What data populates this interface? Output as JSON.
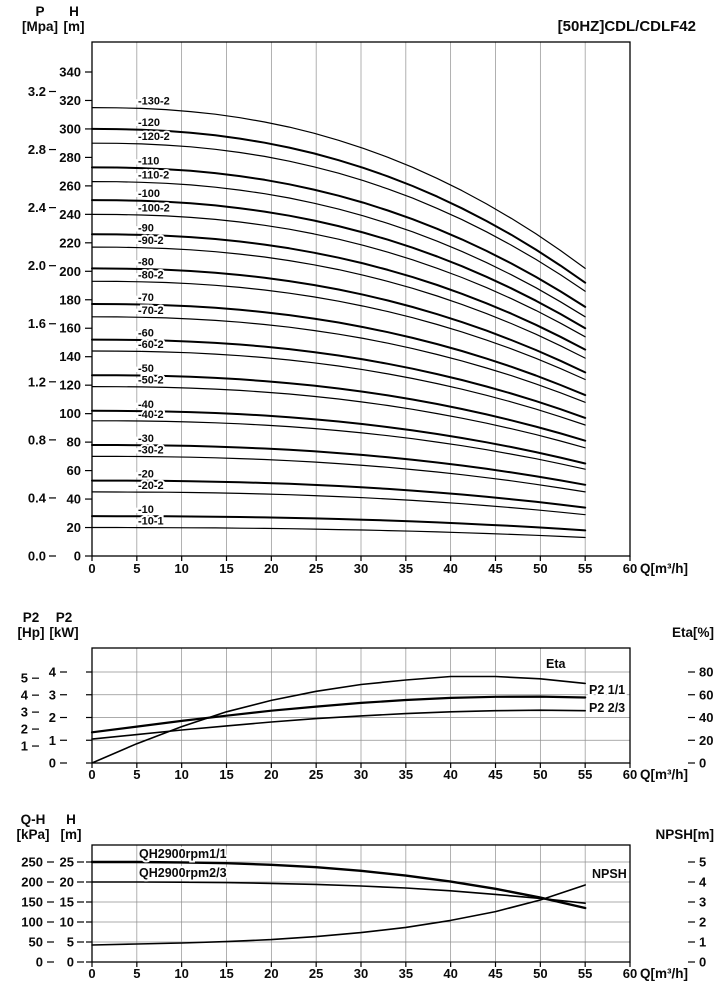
{
  "title": "[50HZ]CDL/CDLF42",
  "chart_data": [
    {
      "id": "qh-curves",
      "type": "line",
      "title": "[50HZ]CDL/CDLF42",
      "x": {
        "label": "Q[m³/h]",
        "min": 0,
        "max": 60,
        "ticks": [
          0,
          5,
          10,
          15,
          20,
          25,
          30,
          35,
          40,
          45,
          50,
          55,
          60
        ]
      },
      "y_axes": [
        {
          "name": "P",
          "unit": "[Mpa]",
          "ticks": [
            "0.0",
            "0.4",
            "0.8",
            "1.2",
            "1.6",
            "2.0",
            "2.4",
            "2.8",
            "3.2"
          ]
        },
        {
          "name": "H",
          "unit": "[m]",
          "min": 0,
          "max": 340,
          "ticks": [
            0,
            20,
            40,
            60,
            80,
            100,
            120,
            140,
            160,
            180,
            200,
            220,
            240,
            260,
            280,
            300,
            320,
            340
          ]
        }
      ],
      "mpa_to_m": 101.97,
      "curve_shape_exponent": 2.3,
      "grid": "vertical",
      "curves": [
        {
          "label": "-130-2",
          "head_q0_m": 315,
          "head_q55_m": 202
        },
        {
          "label": "-120",
          "head_q0_m": 300,
          "head_q55_m": 192
        },
        {
          "label": "-120-2",
          "head_q0_m": 290,
          "head_q55_m": 186
        },
        {
          "label": "-110",
          "head_q0_m": 273,
          "head_q55_m": 175
        },
        {
          "label": "-110-2",
          "head_q0_m": 263,
          "head_q55_m": 168
        },
        {
          "label": "-100",
          "head_q0_m": 250,
          "head_q55_m": 160
        },
        {
          "label": "-100-2",
          "head_q0_m": 240,
          "head_q55_m": 154
        },
        {
          "label": "-90",
          "head_q0_m": 226,
          "head_q55_m": 145
        },
        {
          "label": "-90-2",
          "head_q0_m": 217,
          "head_q55_m": 139
        },
        {
          "label": "-80",
          "head_q0_m": 202,
          "head_q55_m": 129
        },
        {
          "label": "-80-2",
          "head_q0_m": 193,
          "head_q55_m": 124
        },
        {
          "label": "-70",
          "head_q0_m": 177,
          "head_q55_m": 113
        },
        {
          "label": "-70-2",
          "head_q0_m": 168,
          "head_q55_m": 108
        },
        {
          "label": "-60",
          "head_q0_m": 152,
          "head_q55_m": 97
        },
        {
          "label": "-60-2",
          "head_q0_m": 144,
          "head_q55_m": 92
        },
        {
          "label": "-50",
          "head_q0_m": 127,
          "head_q55_m": 81
        },
        {
          "label": "-50-2",
          "head_q0_m": 119,
          "head_q55_m": 76
        },
        {
          "label": "-40",
          "head_q0_m": 102,
          "head_q55_m": 65
        },
        {
          "label": "-40-2",
          "head_q0_m": 95,
          "head_q55_m": 61
        },
        {
          "label": "-30",
          "head_q0_m": 78,
          "head_q55_m": 50
        },
        {
          "label": "-30-2",
          "head_q0_m": 70,
          "head_q55_m": 45
        },
        {
          "label": "-20",
          "head_q0_m": 53,
          "head_q55_m": 34
        },
        {
          "label": "-20-2",
          "head_q0_m": 45,
          "head_q55_m": 29
        },
        {
          "label": "-10",
          "head_q0_m": 28,
          "head_q55_m": 18
        },
        {
          "label": "-10-1",
          "head_q0_m": 20,
          "head_q55_m": 13
        }
      ]
    },
    {
      "id": "power-efficiency",
      "type": "line",
      "x": {
        "label": "Q[m³/h]",
        "min": 0,
        "max": 60,
        "ticks": [
          0,
          5,
          10,
          15,
          20,
          25,
          30,
          35,
          40,
          45,
          50,
          55,
          60
        ]
      },
      "y_axes": [
        {
          "name": "P2",
          "unit": "[Hp]",
          "ticks": [
            1,
            2,
            3,
            4,
            5
          ],
          "kw_per_hp": 0.7457
        },
        {
          "name": "P2",
          "unit": "[kW]",
          "min": 0,
          "max": 4,
          "ticks": [
            0,
            1,
            2,
            3,
            4
          ]
        }
      ],
      "right_axis": {
        "label": "Eta[%]",
        "min": 0,
        "max": 80,
        "ticks": [
          0,
          20,
          40,
          60,
          80
        ]
      },
      "grid": "both",
      "q": [
        0,
        5,
        10,
        15,
        20,
        25,
        30,
        35,
        40,
        45,
        50,
        55
      ],
      "series": [
        {
          "name": "Eta",
          "axis": "right",
          "unit": "%",
          "values": [
            0,
            17,
            32,
            45,
            55,
            63,
            69,
            73,
            76,
            76,
            74,
            70
          ]
        },
        {
          "name": "P2 1/1",
          "axis": "left",
          "unit": "kW",
          "values": [
            1.35,
            1.6,
            1.85,
            2.08,
            2.3,
            2.48,
            2.64,
            2.77,
            2.86,
            2.91,
            2.92,
            2.88
          ]
        },
        {
          "name": "P2 2/3",
          "axis": "left",
          "unit": "kW",
          "values": [
            1.05,
            1.25,
            1.45,
            1.63,
            1.8,
            1.95,
            2.07,
            2.17,
            2.25,
            2.3,
            2.32,
            2.3
          ]
        }
      ]
    },
    {
      "id": "qh-npsh",
      "type": "line",
      "x": {
        "label": "Q[m³/h]",
        "min": 0,
        "max": 60,
        "ticks": [
          0,
          5,
          10,
          15,
          20,
          25,
          30,
          35,
          40,
          45,
          50,
          55,
          60
        ]
      },
      "y_axes": [
        {
          "name": "Q-H",
          "unit": "[kPa]",
          "ticks": [
            0,
            50,
            100,
            150,
            200,
            250
          ]
        },
        {
          "name": "H",
          "unit": "[m]",
          "min": 0,
          "max": 25,
          "ticks": [
            0,
            5,
            10,
            15,
            20,
            25
          ]
        }
      ],
      "right_axis": {
        "label": "NPSH[m]",
        "min": 0,
        "max": 5,
        "ticks": [
          0,
          1,
          2,
          3,
          4,
          5
        ]
      },
      "grid": "both",
      "q": [
        0,
        5,
        10,
        15,
        20,
        25,
        30,
        35,
        40,
        45,
        50,
        55
      ],
      "series": [
        {
          "name": "QH2900rpm1/1",
          "axis": "left",
          "unit": "m",
          "values": [
            25,
            25,
            24.9,
            24.7,
            24.3,
            23.7,
            22.8,
            21.6,
            20.1,
            18.3,
            16.1,
            13.5
          ]
        },
        {
          "name": "QH2900rpm2/3",
          "axis": "left",
          "unit": "m",
          "values": [
            20,
            20,
            19.95,
            19.85,
            19.65,
            19.4,
            19.0,
            18.5,
            17.8,
            16.9,
            15.9,
            14.7
          ]
        },
        {
          "name": "NPSH",
          "axis": "right",
          "unit": "m",
          "values": [
            0.85,
            0.9,
            0.95,
            1.02,
            1.12,
            1.27,
            1.47,
            1.73,
            2.08,
            2.52,
            3.1,
            3.85
          ]
        }
      ]
    }
  ]
}
